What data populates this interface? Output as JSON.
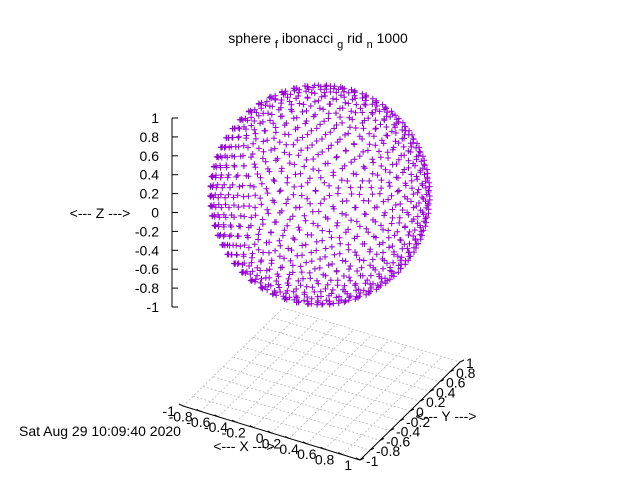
{
  "chart_data": {
    "type": "scatter",
    "projection": "3d",
    "title_parts": {
      "a": "sphere",
      "b": "f",
      "c": "ibonacci",
      "d": "g",
      "e": "rid",
      "f2": "n",
      "g": "1000"
    },
    "xlabel": "<--- X --->",
    "ylabel": "<--- Y --->",
    "zlabel": "<--- Z --->",
    "timestamp": "Sat Aug 29 10:09:40 2020",
    "xlim": [
      -1,
      1
    ],
    "ylim": [
      -1,
      1
    ],
    "zlim": [
      -1,
      1
    ],
    "x_ticks": [
      "-1",
      "-0.8",
      "-0.6",
      "-0.4",
      "-0.2",
      "0",
      "0.2",
      "0.4",
      "0.6",
      "0.8",
      "1"
    ],
    "y_ticks": [
      "-1",
      "-0.8",
      "-0.6",
      "-0.4",
      "-0.2",
      "0",
      "0.2",
      "0.4",
      "0.6",
      "0.8",
      "1"
    ],
    "z_ticks": [
      "1",
      "0.8",
      "0.6",
      "0.4",
      "0.2",
      "0",
      "-0.2",
      "-0.4",
      "-0.6",
      "-0.8",
      "-1"
    ],
    "grid": true,
    "series": [
      {
        "marker": "+",
        "color": "#9400d3",
        "point_count": 1000,
        "generator": "fibonacci sphere grid, unit radius"
      }
    ]
  }
}
